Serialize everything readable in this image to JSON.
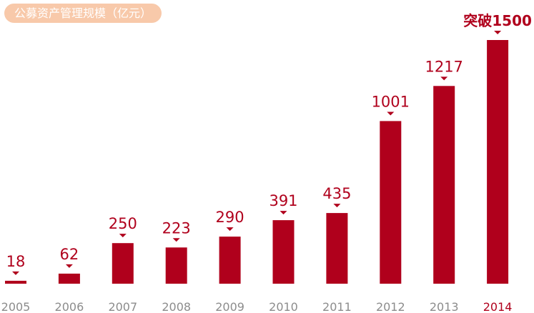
{
  "chart_data": {
    "type": "bar",
    "title": "公募资产管理规模（亿元）",
    "categories": [
      "2005",
      "2006",
      "2007",
      "2008",
      "2009",
      "2010",
      "2011",
      "2012",
      "2013",
      "2014"
    ],
    "values": [
      18,
      62,
      250,
      223,
      290,
      391,
      435,
      1001,
      1217,
      1500
    ],
    "data_labels": [
      "18",
      "62",
      "250",
      "223",
      "290",
      "391",
      "435",
      "1001",
      "1217",
      "突破1500"
    ],
    "ylim": [
      0,
      1500
    ],
    "grid": false,
    "legend": "none",
    "colors": {
      "bar": "#b0001c",
      "label": "#b0001c",
      "tick_label": "#8c8c8c",
      "highlight_tick": "#b0001c",
      "title_bg": "#f8c9aa",
      "title_text": "#ffffff"
    }
  }
}
